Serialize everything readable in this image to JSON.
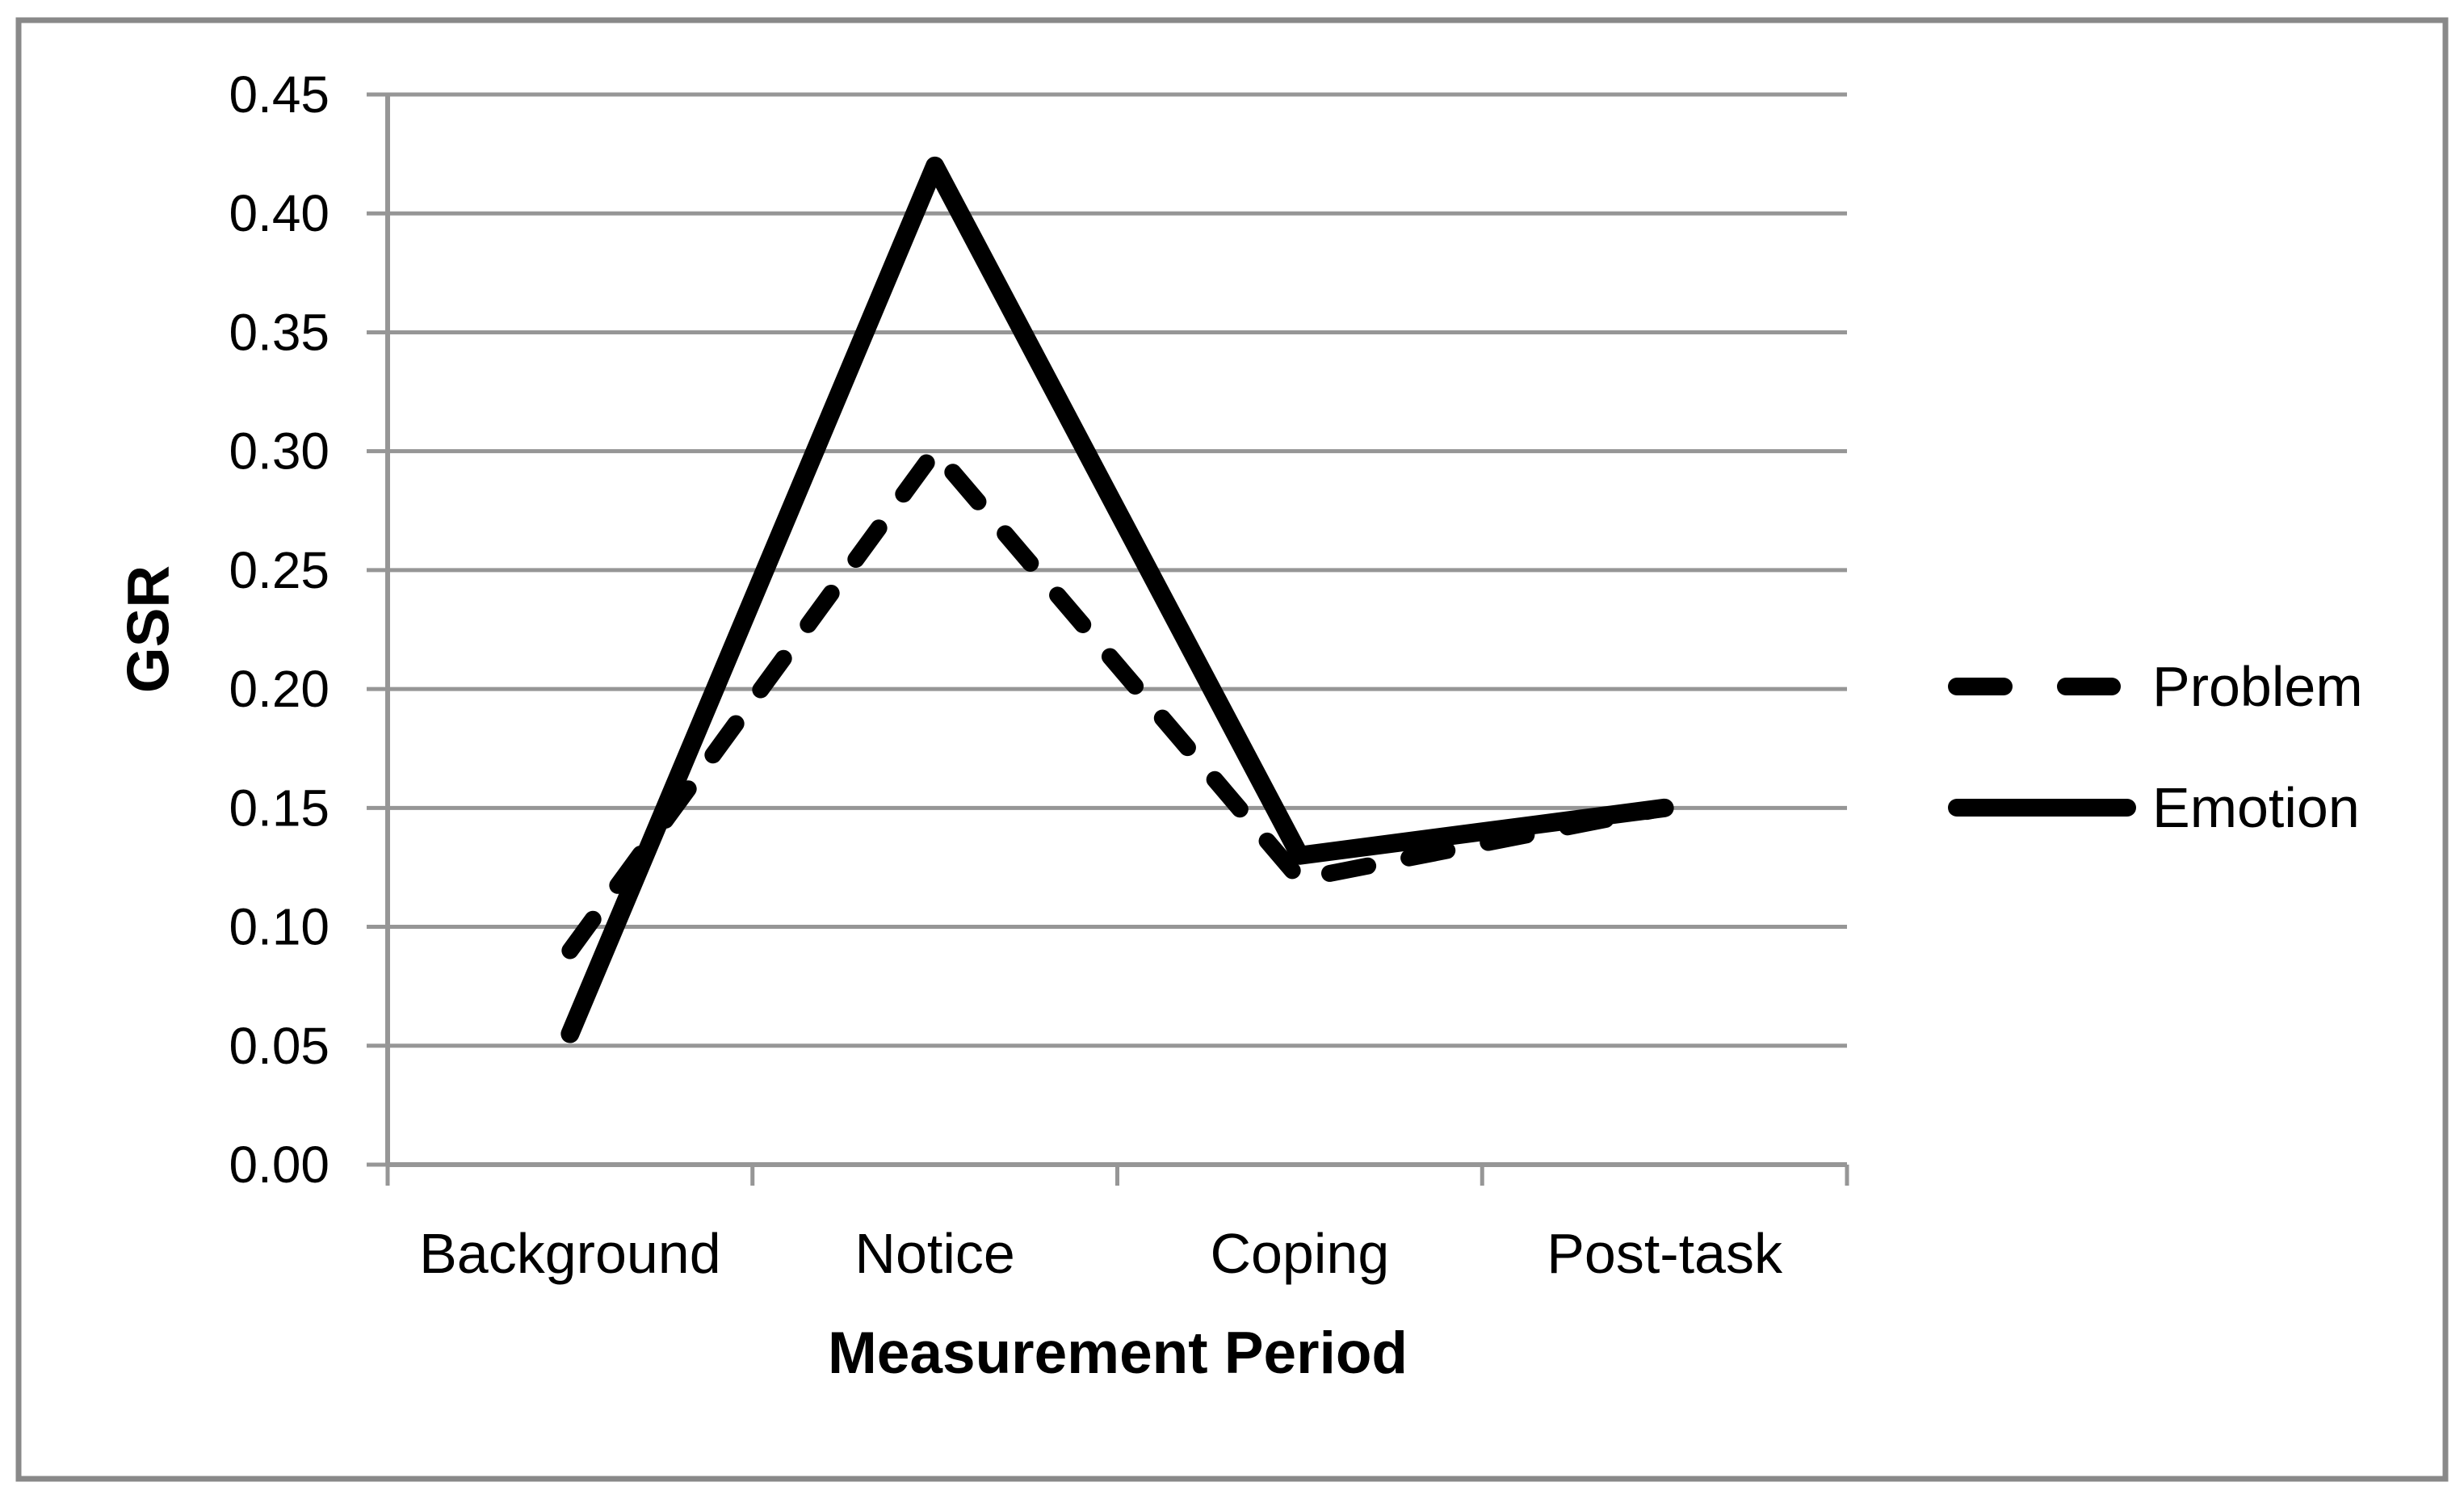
{
  "chart_data": {
    "type": "line",
    "xlabel": "Measurement Period",
    "ylabel": "GSR",
    "categories": [
      "Background",
      "Notice",
      "Coping",
      "Post-task"
    ],
    "series": [
      {
        "name": "Problem",
        "style": "dashed",
        "values": [
          0.09,
          0.3,
          0.12,
          0.15
        ]
      },
      {
        "name": "Emotion",
        "style": "solid",
        "values": [
          0.055,
          0.42,
          0.13,
          0.15
        ]
      }
    ],
    "ylim": [
      0.0,
      0.45
    ],
    "ytick_step": 0.05,
    "ytick_labels": [
      "0.00",
      "0.05",
      "0.10",
      "0.15",
      "0.20",
      "0.25",
      "0.30",
      "0.35",
      "0.40",
      "0.45"
    ],
    "grid": true,
    "legend_position": "right"
  },
  "colors": {
    "series_line": "#000000",
    "gridline": "#969696",
    "axis": "#969696",
    "outer_border": "#898989",
    "text": "#000000",
    "background": "#ffffff"
  }
}
